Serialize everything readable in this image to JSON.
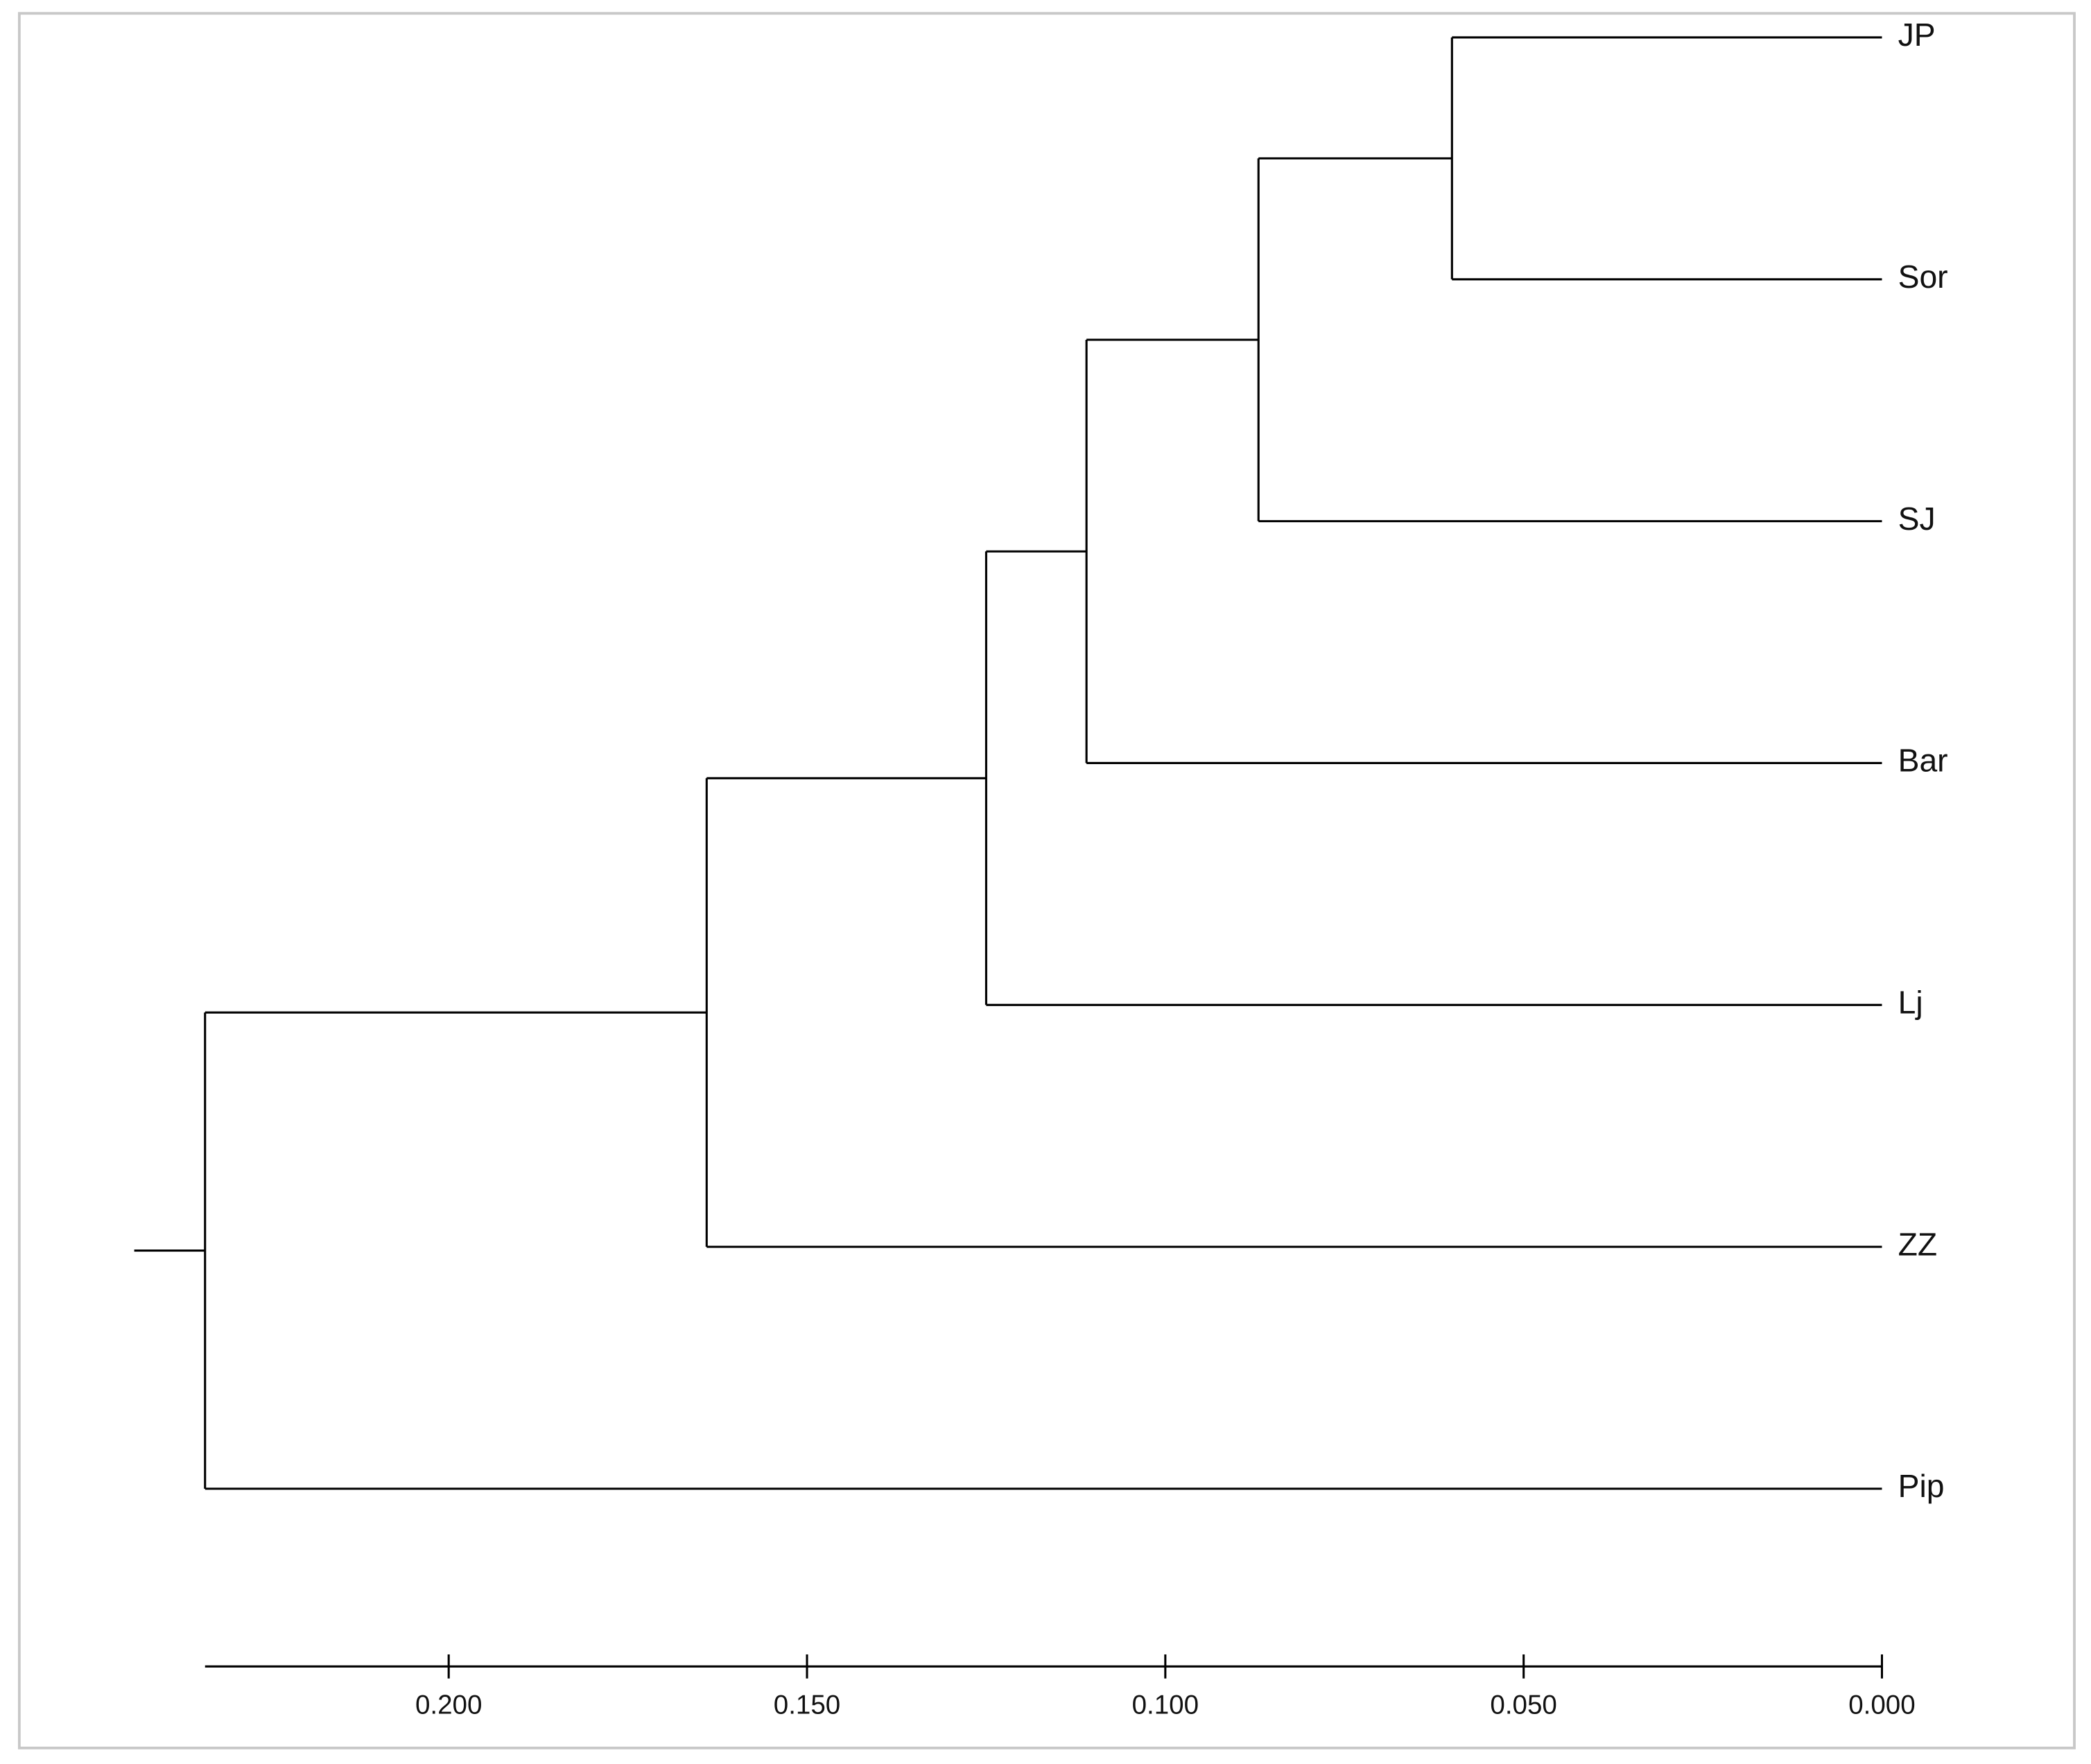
{
  "chart_data": {
    "type": "dendrogram",
    "leaves": [
      "JP",
      "Sor",
      "SJ",
      "Bar",
      "Lj",
      "ZZ",
      "Pip"
    ],
    "merges": [
      {
        "a": 0,
        "b": 1,
        "height": 0.06
      },
      {
        "a": 7,
        "b": 2,
        "height": 0.087
      },
      {
        "a": 8,
        "b": 3,
        "height": 0.111
      },
      {
        "a": 9,
        "b": 4,
        "height": 0.125
      },
      {
        "a": 10,
        "b": 5,
        "height": 0.164
      },
      {
        "a": 11,
        "b": 6,
        "height": 0.234
      }
    ],
    "xlim": [
      0.234,
      0
    ],
    "xticks": [
      {
        "value": 0.2,
        "label": "0.200"
      },
      {
        "value": 0.15,
        "label": "0.150"
      },
      {
        "value": 0.1,
        "label": "0.100"
      },
      {
        "value": 0.05,
        "label": "0.050"
      },
      {
        "value": 0,
        "label": "0.000"
      }
    ],
    "color": "#000000"
  }
}
